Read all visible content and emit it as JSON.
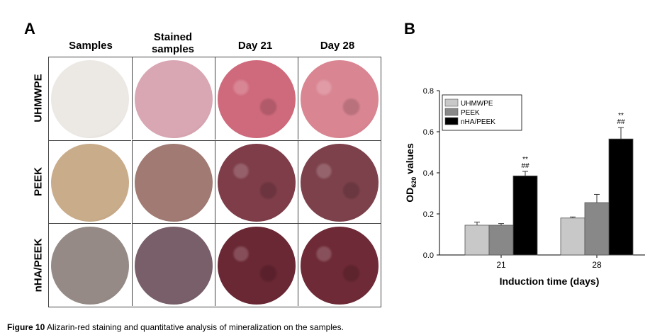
{
  "panel_a": {
    "label": "A",
    "columns": [
      "Samples",
      "Stained samples",
      "Day 21",
      "Day 28"
    ],
    "rows": [
      {
        "label": "UHMWPE",
        "colors": [
          "#ece8e4",
          "#d9a6b3",
          "#cf6a7c",
          "#d98592"
        ]
      },
      {
        "label": "PEEK",
        "colors": [
          "#c9ac8a",
          "#a07a73",
          "#7e3d49",
          "#7d414b"
        ]
      },
      {
        "label": "nHA/PEEK",
        "colors": [
          "#958a86",
          "#785f6a",
          "#6a2734",
          "#6e2a36"
        ]
      }
    ]
  },
  "panel_b": {
    "label": "B",
    "chart_data": {
      "type": "bar",
      "categories": [
        "21",
        "28"
      ],
      "series": [
        {
          "name": "UHMWPE",
          "color": "#c8c8c8",
          "values": [
            0.145,
            0.18
          ],
          "errors": [
            0.015,
            0.005
          ],
          "annotations": [
            "",
            ""
          ]
        },
        {
          "name": "PEEK",
          "color": "#888888",
          "values": [
            0.145,
            0.255
          ],
          "errors": [
            0.008,
            0.04
          ],
          "annotations": [
            "",
            ""
          ]
        },
        {
          "name": "nHA/PEEK",
          "color": "#000000",
          "values": [
            0.385,
            0.565
          ],
          "errors": [
            0.022,
            0.055
          ],
          "annotations": [
            "**\n##",
            "**\n##"
          ]
        }
      ],
      "xlabel": "Induction time (days)",
      "ylabel_main": "OD",
      "ylabel_sub": "620",
      "ylabel_rest": " values",
      "ylim": [
        0,
        0.8
      ],
      "yticks": [
        "0.0",
        "0.2",
        "0.4",
        "0.6",
        "0.8"
      ],
      "legend": "top-left"
    }
  },
  "caption": {
    "figure_label": "Figure 10",
    "text": " Alizarin-red staining and quantitative analysis of mineralization on the samples."
  }
}
